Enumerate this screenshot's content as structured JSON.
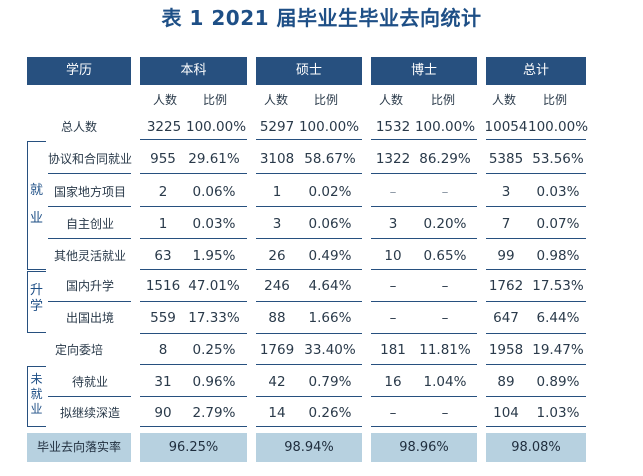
{
  "title": "表 1 2021 届毕业生毕业去向统计",
  "header": {
    "col0": "学历",
    "groups": [
      "本科",
      "硕士",
      "博士",
      "总计"
    ],
    "sub_count": "人数",
    "sub_ratio": "比例"
  },
  "total": {
    "label": "总人数",
    "values": [
      "3225",
      "100.00%",
      "5297",
      "100.00%",
      "1532",
      "100.00%",
      "10054",
      "100.00%"
    ]
  },
  "employment": {
    "group_chars": [
      "就",
      "业"
    ],
    "rows": [
      {
        "label": "协议和合同就业",
        "values": [
          "955",
          "29.61%",
          "3108",
          "58.67%",
          "1322",
          "86.29%",
          "5385",
          "53.56%"
        ]
      },
      {
        "label": "国家地方项目",
        "values": [
          "2",
          "0.06%",
          "1",
          "0.02%",
          "–",
          "–",
          "3",
          "0.03%"
        ]
      },
      {
        "label": "自主创业",
        "values": [
          "1",
          "0.03%",
          "3",
          "0.06%",
          "3",
          "0.20%",
          "7",
          "0.07%"
        ]
      },
      {
        "label": "其他灵活就业",
        "values": [
          "63",
          "1.95%",
          "26",
          "0.49%",
          "10",
          "0.65%",
          "99",
          "0.98%"
        ]
      }
    ]
  },
  "further_study": {
    "group_chars": [
      "升",
      "学"
    ],
    "rows": [
      {
        "label": "国内升学",
        "values": [
          "1516",
          "47.01%",
          "246",
          "4.64%",
          "–",
          "–",
          "1762",
          "17.53%"
        ]
      },
      {
        "label": "出国出境",
        "values": [
          "559",
          "17.33%",
          "88",
          "1.66%",
          "–",
          "–",
          "647",
          "6.44%"
        ]
      }
    ]
  },
  "directed": {
    "label": "定向委培",
    "values": [
      "8",
      "0.25%",
      "1769",
      "33.40%",
      "181",
      "11.81%",
      "1958",
      "19.47%"
    ]
  },
  "unemployed": {
    "group_chars": [
      "未",
      "就",
      "业"
    ],
    "rows": [
      {
        "label": "待就业",
        "values": [
          "31",
          "0.96%",
          "42",
          "0.79%",
          "16",
          "1.04%",
          "89",
          "0.89%"
        ]
      },
      {
        "label": "拟继续深造",
        "values": [
          "90",
          "2.79%",
          "14",
          "0.26%",
          "–",
          "–",
          "104",
          "1.03%"
        ]
      }
    ]
  },
  "footer": {
    "label": "毕业去向落实率",
    "values": [
      "96.25%",
      "98.94%",
      "98.96%",
      "98.08%"
    ]
  },
  "colors": {
    "header_bg": "#27507f",
    "title": "#1e4f86",
    "footer_bg": "#b7d1e0"
  }
}
